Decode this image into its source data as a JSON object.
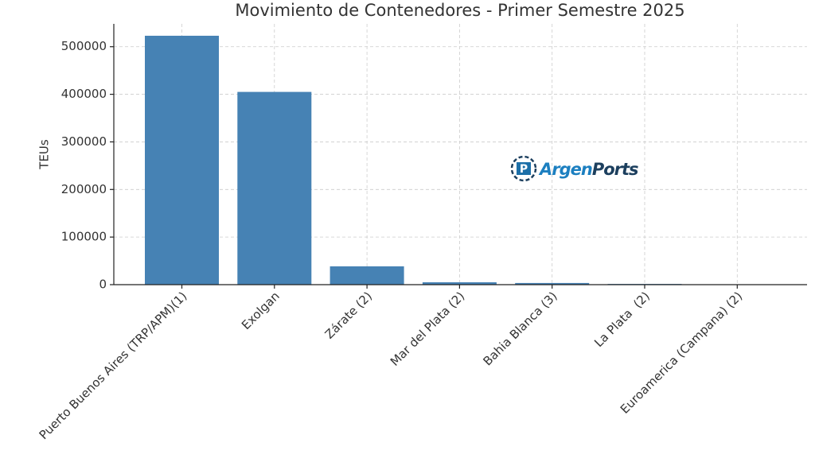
{
  "chart_data": {
    "type": "bar",
    "title": "Movimiento de Contenedores - Primer Semestre 2025",
    "y_label": "TEUs",
    "categories": [
      "Puerto Buenos Aires (TRP/APM)(1)",
      "Exolgan",
      "Zárate (2)",
      "Mar del Plata (2)",
      "Bahia Blanca (3)",
      "La Plata  (2)",
      "Euroamerica (Campana) (2)"
    ],
    "values": [
      523000,
      405000,
      38500,
      5000,
      3500,
      1500,
      300
    ],
    "color": "#4682b4",
    "ylim": [
      0,
      548000
    ],
    "yticks": [
      0,
      100000,
      200000,
      300000,
      400000,
      500000
    ],
    "grid": true,
    "watermark": [
      "Argen",
      "Ports"
    ]
  }
}
